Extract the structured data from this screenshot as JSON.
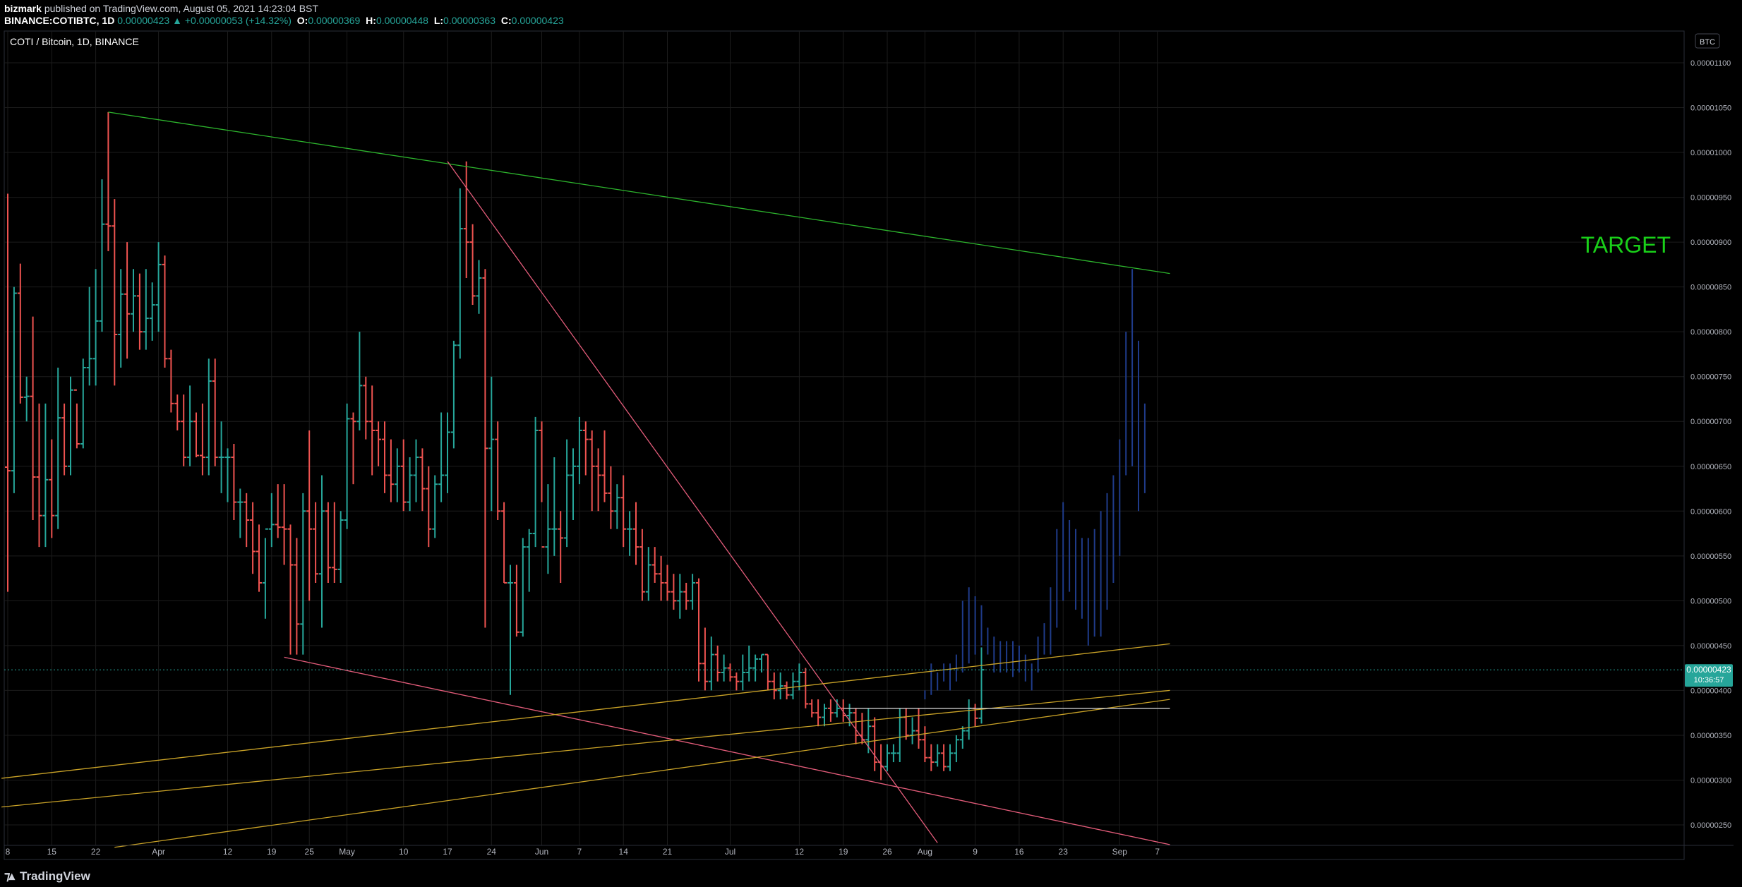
{
  "header": {
    "publisher": "bizmark",
    "published_text": "published on TradingView.com, August 05, 2021 14:23:04 BST",
    "symbol": "BINANCE:COTIBTC, 1D",
    "last": "0.00000423",
    "change": "▲ +0.00000053 (+14.32%)",
    "o_label": "O:",
    "o": "0.00000369",
    "h_label": "H:",
    "h": "0.00000448",
    "l_label": "L:",
    "l": "0.00000363",
    "c_label": "C:",
    "c": "0.00000423"
  },
  "chart_title": "COTI / Bitcoin, 1D, BINANCE",
  "currency_badge": "BTC",
  "price_label": "0.00000423",
  "countdown": "10:36:57",
  "annotation": "TARGET",
  "footer_logo": "TradingView",
  "colors": {
    "up": "#26a69a",
    "down": "#ef5350",
    "grid": "#1c1c1c",
    "green_line": "#2db52d",
    "pink_line": "#e35c7a",
    "yellow_line": "#c9a227",
    "projection": "#1f3b8a",
    "target": "#19d019",
    "white_line": "#cccccc"
  },
  "chart_data": {
    "type": "ohlc",
    "y_ticks": [
      "0.00001100",
      "0.00001050",
      "0.00001000",
      "0.00000950",
      "0.00000900",
      "0.00000850",
      "0.00000800",
      "0.00000750",
      "0.00000700",
      "0.00000650",
      "0.00000600",
      "0.00000550",
      "0.00000500",
      "0.00000450",
      "0.00000400",
      "0.00000350",
      "0.00000300",
      "0.00000250"
    ],
    "x_ticks": [
      {
        "label": "8",
        "i": 0
      },
      {
        "label": "15",
        "i": 7
      },
      {
        "label": "22",
        "i": 14
      },
      {
        "label": "Apr",
        "i": 24
      },
      {
        "label": "12",
        "i": 35
      },
      {
        "label": "19",
        "i": 42
      },
      {
        "label": "25",
        "i": 48
      },
      {
        "label": "May",
        "i": 54
      },
      {
        "label": "10",
        "i": 63
      },
      {
        "label": "17",
        "i": 70
      },
      {
        "label": "24",
        "i": 77
      },
      {
        "label": "Jun",
        "i": 85
      },
      {
        "label": "7",
        "i": 91
      },
      {
        "label": "14",
        "i": 98
      },
      {
        "label": "21",
        "i": 105
      },
      {
        "label": "Jul",
        "i": 115
      },
      {
        "label": "12",
        "i": 126
      },
      {
        "label": "19",
        "i": 133
      },
      {
        "label": "26",
        "i": 140
      },
      {
        "label": "Aug",
        "i": 146
      },
      {
        "label": "9",
        "i": 154
      },
      {
        "label": "16",
        "i": 161
      },
      {
        "label": "23",
        "i": 168
      },
      {
        "label": "Sep",
        "i": 177
      },
      {
        "label": "7",
        "i": 183
      }
    ],
    "ylim": [
      2.25e-06,
      1.12e-05
    ],
    "bars": [
      [
        6.49e-06,
        9.54e-06,
        5.1e-06,
        6.45e-06
      ],
      [
        6.45e-06,
        8.5e-06,
        6.2e-06,
        8.43e-06
      ],
      [
        8.43e-06,
        8.76e-06,
        7.2e-06,
        7.27e-06
      ],
      [
        7.27e-06,
        7.5e-06,
        7e-06,
        7.28e-06
      ],
      [
        7.28e-06,
        8.17e-06,
        5.9e-06,
        6.38e-06
      ],
      [
        6.38e-06,
        7.2e-06,
        5.6e-06,
        5.95e-06
      ],
      [
        5.95e-06,
        7.2e-06,
        5.6e-06,
        6.35e-06
      ],
      [
        6.35e-06,
        6.8e-06,
        5.7e-06,
        5.95e-06
      ],
      [
        5.95e-06,
        7.6e-06,
        5.8e-06,
        7.04e-06
      ],
      [
        7.04e-06,
        7.2e-06,
        6.4e-06,
        6.5e-06
      ],
      [
        6.5e-06,
        7.5e-06,
        6.4e-06,
        7.35e-06
      ],
      [
        7.35e-06,
        7.2e-06,
        6.7e-06,
        6.75e-06
      ],
      [
        6.75e-06,
        7.7e-06,
        6.7e-06,
        7.6e-06
      ],
      [
        7.6e-06,
        8.5e-06,
        7.4e-06,
        7.7e-06
      ],
      [
        7.7e-06,
        8.7e-06,
        7.4e-06,
        8.12e-06
      ],
      [
        8.12e-06,
        9.7e-06,
        8e-06,
        9.2e-06
      ],
      [
        9.2e-06,
        1.045e-05,
        8.9e-06,
        9.18e-06
      ],
      [
        9.18e-06,
        9.48e-06,
        7.4e-06,
        7.97e-06
      ],
      [
        7.97e-06,
        8.7e-06,
        7.6e-06,
        8.42e-06
      ],
      [
        8.42e-06,
        9e-06,
        7.7e-06,
        8.2e-06
      ],
      [
        8.2e-06,
        8.7e-06,
        8e-06,
        8.4e-06
      ],
      [
        8.4e-06,
        8.65e-06,
        7.8e-06,
        8e-06
      ],
      [
        8e-06,
        8.7e-06,
        7.8e-06,
        8.15e-06
      ],
      [
        8.15e-06,
        8.55e-06,
        7.9e-06,
        8.3e-06
      ],
      [
        8.3e-06,
        9e-06,
        8e-06,
        8.75e-06
      ],
      [
        8.75e-06,
        8.85e-06,
        7.6e-06,
        7.7e-06
      ],
      [
        7.7e-06,
        7.8e-06,
        7.1e-06,
        7.2e-06
      ],
      [
        7.2e-06,
        7.3e-06,
        6.9e-06,
        7e-06
      ],
      [
        7e-06,
        7.3e-06,
        6.5e-06,
        6.6e-06
      ],
      [
        6.6e-06,
        7.4e-06,
        6.5e-06,
        7e-06
      ],
      [
        7e-06,
        7.1e-06,
        6.6e-06,
        6.62e-06
      ],
      [
        6.62e-06,
        7.2e-06,
        6.4e-06,
        6.6e-06
      ],
      [
        6.6e-06,
        7.7e-06,
        6.4e-06,
        7.45e-06
      ],
      [
        7.45e-06,
        7.7e-06,
        6.5e-06,
        6.6e-06
      ],
      [
        6.6e-06,
        7e-06,
        6.2e-06,
        6.6e-06
      ],
      [
        6.6e-06,
        6.7e-06,
        6.1e-06,
        6.6e-06
      ],
      [
        6.6e-06,
        6.75e-06,
        5.9e-06,
        6.1e-06
      ],
      [
        6.1e-06,
        6.25e-06,
        5.7e-06,
        6.1e-06
      ],
      [
        6.1e-06,
        6.2e-06,
        5.6e-06,
        5.9e-06
      ],
      [
        5.9e-06,
        6.1e-06,
        5.3e-06,
        5.55e-06
      ],
      [
        5.55e-06,
        5.85e-06,
        5.1e-06,
        5.2e-06
      ],
      [
        5.2e-06,
        5.7e-06,
        4.8e-06,
        5.8e-06
      ],
      [
        5.8e-06,
        6.2e-06,
        5.6e-06,
        5.85e-06
      ],
      [
        5.85e-06,
        6.3e-06,
        5.7e-06,
        5.82e-06
      ],
      [
        5.82e-06,
        6.3e-06,
        5.4e-06,
        5.8e-06
      ],
      [
        5.8e-06,
        5.85e-06,
        4.4e-06,
        5.4e-06
      ],
      [
        5.4e-06,
        5.7e-06,
        4.4e-06,
        4.74e-06
      ],
      [
        4.74e-06,
        6.2e-06,
        4.4e-06,
        6e-06
      ],
      [
        6e-06,
        6.9e-06,
        5e-06,
        5.8e-06
      ],
      [
        5.8e-06,
        6.1e-06,
        5.2e-06,
        5.3e-06
      ],
      [
        5.3e-06,
        6.4e-06,
        4.7e-06,
        6e-06
      ],
      [
        6e-06,
        6.1e-06,
        5.2e-06,
        5.37e-06
      ],
      [
        5.37e-06,
        6.1e-06,
        5.2e-06,
        5.35e-06
      ],
      [
        5.35e-06,
        6e-06,
        5.2e-06,
        5.9e-06
      ],
      [
        5.9e-06,
        7.2e-06,
        5.8e-06,
        7.03e-06
      ],
      [
        7.03e-06,
        7.1e-06,
        6.3e-06,
        7e-06
      ],
      [
        7e-06,
        8e-06,
        6.9e-06,
        7.4e-06
      ],
      [
        7.4e-06,
        7.5e-06,
        6.8e-06,
        7e-06
      ],
      [
        7e-06,
        7.4e-06,
        6.4e-06,
        6.9e-06
      ],
      [
        6.9e-06,
        7e-06,
        6.5e-06,
        6.8e-06
      ],
      [
        6.8e-06,
        7e-06,
        6.2e-06,
        6.4e-06
      ],
      [
        6.4e-06,
        6.8e-06,
        6.1e-06,
        6.3e-06
      ],
      [
        6.3e-06,
        6.7e-06,
        6.1e-06,
        6.5e-06
      ],
      [
        6.5e-06,
        6.8e-06,
        6e-06,
        6.1e-06
      ],
      [
        6.1e-06,
        6.6e-06,
        6e-06,
        6.4e-06
      ],
      [
        6.4e-06,
        6.8e-06,
        6.1e-06,
        6.6e-06
      ],
      [
        6.6e-06,
        6.7e-06,
        6e-06,
        6.25e-06
      ],
      [
        6.25e-06,
        6.5e-06,
        5.6e-06,
        5.8e-06
      ],
      [
        5.8e-06,
        6.4e-06,
        5.7e-06,
        6.3e-06
      ],
      [
        6.3e-06,
        7.1e-06,
        6.1e-06,
        6.4e-06
      ],
      [
        6.4e-06,
        7.1e-06,
        6.2e-06,
        6.88e-06
      ],
      [
        6.88e-06,
        7.9e-06,
        6.7e-06,
        7.85e-06
      ],
      [
        7.85e-06,
        9.6e-06,
        7.7e-06,
        9.15e-06
      ],
      [
        9.15e-06,
        9.9e-06,
        8.6e-06,
        9e-06
      ],
      [
        9e-06,
        9.2e-06,
        8.3e-06,
        8.4e-06
      ],
      [
        8.4e-06,
        8.8e-06,
        8.2e-06,
        8.6e-06
      ],
      [
        8.6e-06,
        8.7e-06,
        4.7e-06,
        6.7e-06
      ],
      [
        6.7e-06,
        7.5e-06,
        6e-06,
        6.8e-06
      ],
      [
        6.8e-06,
        7e-06,
        5.9e-06,
        6e-06
      ],
      [
        6e-06,
        6.1e-06,
        5.2e-06,
        5.2e-06
      ],
      [
        5.2e-06,
        5.4e-06,
        3.95e-06,
        5.2e-06
      ],
      [
        5.2e-06,
        5.4e-06,
        4.6e-06,
        4.65e-06
      ],
      [
        4.65e-06,
        5.7e-06,
        4.6e-06,
        5.6e-06
      ],
      [
        5.6e-06,
        5.8e-06,
        5.1e-06,
        5.75e-06
      ],
      [
        5.75e-06,
        7.05e-06,
        5.6e-06,
        6.9e-06
      ],
      [
        6.9e-06,
        7e-06,
        6.1e-06,
        5.6e-06
      ],
      [
        5.6e-06,
        6.3e-06,
        5.3e-06,
        5.8e-06
      ],
      [
        5.8e-06,
        6.6e-06,
        5.5e-06,
        5.8e-06
      ],
      [
        5.8e-06,
        6e-06,
        5.2e-06,
        5.7e-06
      ],
      [
        5.7e-06,
        6.8e-06,
        5.6e-06,
        6.4e-06
      ],
      [
        6.4e-06,
        6.7e-06,
        5.9e-06,
        6.5e-06
      ],
      [
        6.5e-06,
        7.05e-06,
        6.3e-06,
        6.9e-06
      ],
      [
        6.9e-06,
        7e-06,
        6.4e-06,
        6.8e-06
      ],
      [
        6.8e-06,
        6.9e-06,
        6e-06,
        6.5e-06
      ],
      [
        6.5e-06,
        6.7e-06,
        6e-06,
        6.4e-06
      ],
      [
        6.4e-06,
        6.9e-06,
        6.1e-06,
        6.2e-06
      ],
      [
        6.2e-06,
        6.5e-06,
        5.8e-06,
        6e-06
      ],
      [
        6e-06,
        6.3e-06,
        5.8e-06,
        6.15e-06
      ],
      [
        6.15e-06,
        6.4e-06,
        5.6e-06,
        5.8e-06
      ],
      [
        5.8e-06,
        6e-06,
        5.5e-06,
        5.8e-06
      ],
      [
        5.8e-06,
        6.1e-06,
        5.4e-06,
        5.6e-06
      ],
      [
        5.6e-06,
        5.8e-06,
        5e-06,
        5.1e-06
      ],
      [
        5.1e-06,
        5.6e-06,
        5e-06,
        5.4e-06
      ],
      [
        5.4e-06,
        5.6e-06,
        5.2e-06,
        5.3e-06
      ],
      [
        5.3e-06,
        5.5e-06,
        5e-06,
        5.2e-06
      ],
      [
        5.2e-06,
        5.4e-06,
        5e-06,
        5.1e-06
      ],
      [
        5.1e-06,
        5.3e-06,
        4.9e-06,
        5e-06
      ],
      [
        5e-06,
        5.3e-06,
        4.8e-06,
        5.1e-06
      ],
      [
        5.1e-06,
        5.2e-06,
        4.9e-06,
        5e-06
      ],
      [
        5e-06,
        5.3e-06,
        4.9e-06,
        5.2e-06
      ],
      [
        5.2e-06,
        5.25e-06,
        4.1e-06,
        4.3e-06
      ],
      [
        4.3e-06,
        4.7e-06,
        4e-06,
        4.1e-06
      ],
      [
        4.1e-06,
        4.6e-06,
        4e-06,
        4.4e-06
      ],
      [
        4.4e-06,
        4.5e-06,
        4.1e-06,
        4.2e-06
      ],
      [
        4.2e-06,
        4.4e-06,
        4.1e-06,
        4.25e-06
      ],
      [
        4.25e-06,
        4.3e-06,
        4.1e-06,
        4.15e-06
      ],
      [
        4.15e-06,
        4.2e-06,
        4e-06,
        4.1e-06
      ],
      [
        4.1e-06,
        4.4e-06,
        4e-06,
        4.2e-06
      ],
      [
        4.2e-06,
        4.5e-06,
        4.1e-06,
        4.25e-06
      ],
      [
        4.25e-06,
        4.4e-06,
        4.1e-06,
        4.35e-06
      ],
      [
        4.35e-06,
        4.4e-06,
        4.2e-06,
        4.4e-06
      ],
      [
        4.4e-06,
        4.4e-06,
        4e-06,
        4.1e-06
      ],
      [
        4.1e-06,
        4.2e-06,
        3.9e-06,
        4e-06
      ],
      [
        4e-06,
        4.2e-06,
        3.9e-06,
        4.05e-06
      ],
      [
        4.05e-06,
        4.1e-06,
        3.9e-06,
        3.95e-06
      ],
      [
        3.95e-06,
        4.2e-06,
        3.9e-06,
        4.1e-06
      ],
      [
        4.1e-06,
        4.3e-06,
        4e-06,
        4.2e-06
      ],
      [
        4.2e-06,
        4.25e-06,
        3.8e-06,
        3.85e-06
      ],
      [
        3.85e-06,
        3.9e-06,
        3.7e-06,
        3.75e-06
      ],
      [
        3.75e-06,
        3.9e-06,
        3.6e-06,
        3.7e-06
      ],
      [
        3.7e-06,
        3.85e-06,
        3.6e-06,
        3.8e-06
      ],
      [
        3.8e-06,
        3.9e-06,
        3.65e-06,
        3.75e-06
      ],
      [
        3.75e-06,
        3.9e-06,
        3.7e-06,
        3.8e-06
      ],
      [
        3.8e-06,
        3.9e-06,
        3.65e-06,
        3.72e-06
      ],
      [
        3.72e-06,
        3.85e-06,
        3.6e-06,
        3.75e-06
      ],
      [
        3.75e-06,
        3.8e-06,
        3.4e-06,
        3.5e-06
      ],
      [
        3.5e-06,
        3.75e-06,
        3.4e-06,
        3.45e-06
      ],
      [
        3.45e-06,
        3.8e-06,
        3.3e-06,
        3.6e-06
      ],
      [
        3.6e-06,
        3.7e-06,
        3.1e-06,
        3.2e-06
      ],
      [
        3.2e-06,
        3.4e-06,
        3e-06,
        3.15e-06
      ],
      [
        3.15e-06,
        3.4e-06,
        3.1e-06,
        3.3e-06
      ],
      [
        3.3e-06,
        3.4e-06,
        3.2e-06,
        3.3e-06
      ],
      [
        3.3e-06,
        3.8e-06,
        3.2e-06,
        3.7e-06
      ],
      [
        3.7e-06,
        3.8e-06,
        3.45e-06,
        3.5e-06
      ],
      [
        3.5e-06,
        3.7e-06,
        3.4e-06,
        3.55e-06
      ],
      [
        3.55e-06,
        3.8e-06,
        3.35e-06,
        3.45e-06
      ],
      [
        3.45e-06,
        3.6e-06,
        3.2e-06,
        3.25e-06
      ],
      [
        3.25e-06,
        3.4e-06,
        3.1e-06,
        3.2e-06
      ],
      [
        3.2e-06,
        3.4e-06,
        3.15e-06,
        3.3e-06
      ],
      [
        3.3e-06,
        3.4e-06,
        3.1e-06,
        3.15e-06
      ],
      [
        3.15e-06,
        3.4e-06,
        3.1e-06,
        3.3e-06
      ],
      [
        3.3e-06,
        3.5e-06,
        3.2e-06,
        3.45e-06
      ],
      [
        3.45e-06,
        3.6e-06,
        3.35e-06,
        3.55e-06
      ],
      [
        3.55e-06,
        3.9e-06,
        3.45e-06,
        3.8e-06
      ],
      [
        3.8e-06,
        3.85e-06,
        3.6e-06,
        3.69e-06
      ],
      [
        3.69e-06,
        4.48e-06,
        3.63e-06,
        4.23e-06
      ]
    ],
    "projection": [
      [
        146,
        3.9e-06,
        4e-06
      ],
      [
        147,
        3.95e-06,
        4.3e-06
      ],
      [
        148,
        4e-06,
        4.2e-06
      ],
      [
        149,
        4.1e-06,
        4.3e-06
      ],
      [
        150,
        4e-06,
        4.3e-06
      ],
      [
        151,
        4.1e-06,
        4.4e-06
      ],
      [
        152,
        4.2e-06,
        5e-06
      ],
      [
        153,
        4.3e-06,
        5.15e-06
      ],
      [
        154,
        4.4e-06,
        5.05e-06
      ],
      [
        155,
        4.5e-06,
        4.95e-06
      ],
      [
        156,
        4.4e-06,
        4.7e-06
      ],
      [
        157,
        4.2e-06,
        4.6e-06
      ],
      [
        158,
        4.2e-06,
        4.55e-06
      ],
      [
        159,
        4.2e-06,
        4.55e-06
      ],
      [
        160,
        4.15e-06,
        4.55e-06
      ],
      [
        161,
        4.2e-06,
        4.5e-06
      ],
      [
        162,
        4.1e-06,
        4.4e-06
      ],
      [
        163,
        4e-06,
        4.3e-06
      ],
      [
        164,
        4.2e-06,
        4.6e-06
      ],
      [
        165,
        4.4e-06,
        4.75e-06
      ],
      [
        166,
        4.4e-06,
        5.15e-06
      ],
      [
        167,
        4.7e-06,
        5.8e-06
      ],
      [
        168,
        5e-06,
        6.1e-06
      ],
      [
        169,
        5.1e-06,
        5.9e-06
      ],
      [
        170,
        4.9e-06,
        5.8e-06
      ],
      [
        171,
        4.8e-06,
        5.7e-06
      ],
      [
        172,
        4.5e-06,
        5.7e-06
      ],
      [
        173,
        4.6e-06,
        5.8e-06
      ],
      [
        174,
        4.6e-06,
        6e-06
      ],
      [
        175,
        4.9e-06,
        6.2e-06
      ],
      [
        176,
        5.2e-06,
        6.4e-06
      ],
      [
        177,
        5.5e-06,
        6.8e-06
      ],
      [
        178,
        6.4e-06,
        8e-06
      ],
      [
        179,
        6.5e-06,
        8.7e-06
      ],
      [
        180,
        6e-06,
        7.9e-06
      ],
      [
        181,
        6.2e-06,
        7.2e-06
      ]
    ],
    "lines": [
      {
        "name": "green",
        "color": "green_line",
        "from": [
          16,
          1.045e-05
        ],
        "to": [
          185,
          8.65e-06
        ]
      },
      {
        "name": "pink-top",
        "color": "pink_line",
        "from": [
          70,
          9.9e-06
        ],
        "to": [
          148,
          2.3e-06
        ]
      },
      {
        "name": "pink-bottom",
        "color": "pink_line",
        "from": [
          44,
          4.37e-06
        ],
        "to": [
          185,
          2.28e-06
        ]
      },
      {
        "name": "yellow-1",
        "color": "yellow_line",
        "from": [
          -1,
          3.02e-06
        ],
        "to": [
          185,
          4.52e-06
        ]
      },
      {
        "name": "yellow-2",
        "color": "yellow_line",
        "from": [
          -1,
          2.7e-06
        ],
        "to": [
          185,
          4e-06
        ]
      },
      {
        "name": "yellow-3",
        "color": "yellow_line",
        "from": [
          17,
          2.25e-06
        ],
        "to": [
          185,
          3.9e-06
        ]
      },
      {
        "name": "white",
        "color": "white_line",
        "from": [
          133,
          3.8e-06
        ],
        "to": [
          185,
          3.8e-06
        ]
      }
    ],
    "current_price": 4.23e-06
  }
}
